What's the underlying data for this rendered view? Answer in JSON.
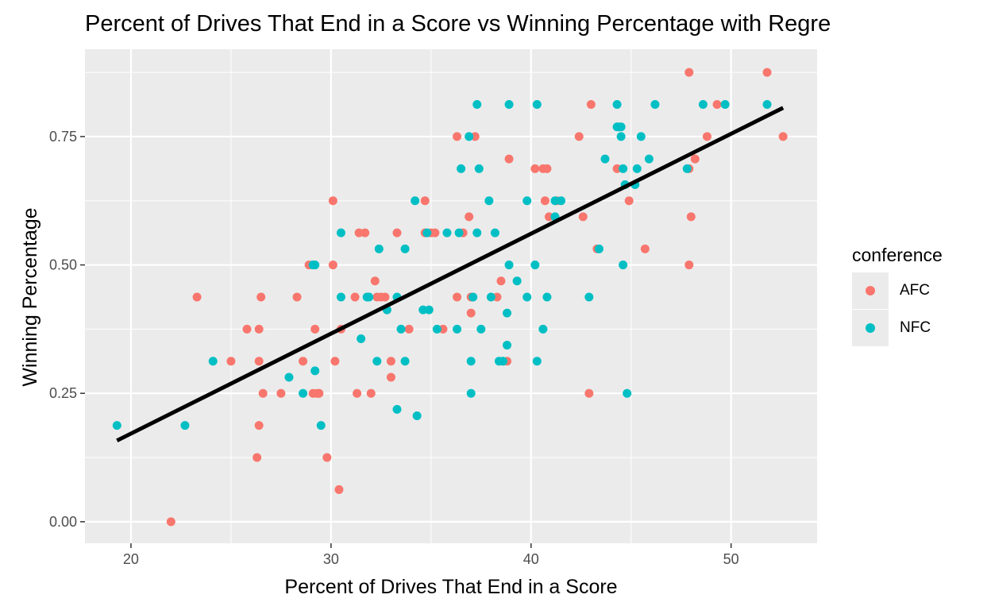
{
  "chart_data": {
    "type": "scatter",
    "title": "Percent of Drives That End in a Score vs Winning Percentage with Regre",
    "xlabel": "Percent of Drives That End in a Score",
    "ylabel": "Winning Percentage",
    "xlim": [
      17.7,
      54.3
    ],
    "ylim": [
      -0.042,
      0.92
    ],
    "x_ticks": [
      20,
      30,
      40,
      50
    ],
    "x_tick_labels": [
      "20",
      "30",
      "40",
      "50"
    ],
    "y_ticks": [
      0,
      0.25,
      0.5,
      0.75
    ],
    "y_tick_labels": [
      "0.00",
      "0.25",
      "0.50",
      "0.75"
    ],
    "grid": true,
    "legend_title": "conference",
    "legend_position": "right",
    "series": [
      {
        "name": "AFC",
        "color": "#F8766D",
        "points": [
          [
            22.0,
            0.0
          ],
          [
            23.3,
            0.4375
          ],
          [
            25.0,
            0.3125
          ],
          [
            25.8,
            0.375
          ],
          [
            26.3,
            0.125
          ],
          [
            26.4,
            0.1875
          ],
          [
            26.4,
            0.3125
          ],
          [
            26.4,
            0.375
          ],
          [
            26.5,
            0.4375
          ],
          [
            26.6,
            0.25
          ],
          [
            27.5,
            0.25
          ],
          [
            28.3,
            0.4375
          ],
          [
            28.6,
            0.3125
          ],
          [
            28.9,
            0.5
          ],
          [
            29.1,
            0.25
          ],
          [
            29.2,
            0.375
          ],
          [
            29.3,
            0.25
          ],
          [
            29.4,
            0.25
          ],
          [
            29.4,
            0.25
          ],
          [
            29.8,
            0.125
          ],
          [
            30.1,
            0.625
          ],
          [
            30.1,
            0.5
          ],
          [
            30.2,
            0.3125
          ],
          [
            30.4,
            0.0625
          ],
          [
            30.5,
            0.375
          ],
          [
            31.2,
            0.4375
          ],
          [
            31.3,
            0.25
          ],
          [
            31.4,
            0.5625
          ],
          [
            31.7,
            0.5625
          ],
          [
            32.0,
            0.25
          ],
          [
            32.3,
            0.4375
          ],
          [
            32.2,
            0.4688
          ],
          [
            32.5,
            0.4375
          ],
          [
            32.7,
            0.4375
          ],
          [
            33.0,
            0.2813
          ],
          [
            33.0,
            0.3125
          ],
          [
            33.3,
            0.5625
          ],
          [
            33.9,
            0.375
          ],
          [
            34.7,
            0.625
          ],
          [
            34.7,
            0.5625
          ],
          [
            35.0,
            0.5625
          ],
          [
            35.2,
            0.5625
          ],
          [
            35.6,
            0.375
          ],
          [
            36.3,
            0.75
          ],
          [
            36.3,
            0.4375
          ],
          [
            36.6,
            0.5625
          ],
          [
            36.9,
            0.5938
          ],
          [
            37.0,
            0.4375
          ],
          [
            37.0,
            0.4063
          ],
          [
            37.2,
            0.75
          ],
          [
            38.3,
            0.4375
          ],
          [
            38.5,
            0.4688
          ],
          [
            38.8,
            0.3125
          ],
          [
            38.9,
            0.7063
          ],
          [
            40.2,
            0.6875
          ],
          [
            40.6,
            0.6875
          ],
          [
            40.8,
            0.6875
          ],
          [
            40.7,
            0.625
          ],
          [
            40.9,
            0.5938
          ],
          [
            41.3,
            0.625
          ],
          [
            42.4,
            0.75
          ],
          [
            42.6,
            0.5938
          ],
          [
            42.9,
            0.25
          ],
          [
            43.0,
            0.8125
          ],
          [
            43.3,
            0.5313
          ],
          [
            44.3,
            0.6875
          ],
          [
            44.9,
            0.625
          ],
          [
            45.7,
            0.5313
          ],
          [
            47.9,
            0.875
          ],
          [
            47.9,
            0.5
          ],
          [
            47.9,
            0.6875
          ],
          [
            48.0,
            0.5938
          ],
          [
            48.2,
            0.7063
          ],
          [
            48.8,
            0.75
          ],
          [
            49.3,
            0.8125
          ],
          [
            51.8,
            0.875
          ],
          [
            52.6,
            0.75
          ]
        ]
      },
      {
        "name": "NFC",
        "color": "#00BFC4",
        "points": [
          [
            19.3,
            0.1875
          ],
          [
            22.7,
            0.1875
          ],
          [
            24.1,
            0.3125
          ],
          [
            27.9,
            0.2813
          ],
          [
            28.6,
            0.25
          ],
          [
            29.2,
            0.5
          ],
          [
            29.1,
            0.5
          ],
          [
            29.2,
            0.2938
          ],
          [
            29.5,
            0.1875
          ],
          [
            30.5,
            0.4375
          ],
          [
            30.5,
            0.5625
          ],
          [
            31.5,
            0.3563
          ],
          [
            31.8,
            0.4375
          ],
          [
            31.9,
            0.4375
          ],
          [
            32.3,
            0.3125
          ],
          [
            32.4,
            0.5313
          ],
          [
            32.8,
            0.4125
          ],
          [
            33.3,
            0.4375
          ],
          [
            33.3,
            0.2188
          ],
          [
            33.5,
            0.375
          ],
          [
            33.7,
            0.5313
          ],
          [
            33.7,
            0.3125
          ],
          [
            34.2,
            0.625
          ],
          [
            34.3,
            0.2063
          ],
          [
            34.6,
            0.4125
          ],
          [
            34.8,
            0.5625
          ],
          [
            34.9,
            0.4125
          ],
          [
            35.3,
            0.375
          ],
          [
            35.8,
            0.5625
          ],
          [
            36.3,
            0.375
          ],
          [
            36.4,
            0.5625
          ],
          [
            36.5,
            0.6875
          ],
          [
            36.9,
            0.75
          ],
          [
            37.0,
            0.25
          ],
          [
            37.0,
            0.3125
          ],
          [
            37.1,
            0.4375
          ],
          [
            37.3,
            0.8125
          ],
          [
            37.3,
            0.5625
          ],
          [
            37.4,
            0.6875
          ],
          [
            37.5,
            0.375
          ],
          [
            37.9,
            0.625
          ],
          [
            38.0,
            0.4375
          ],
          [
            38.2,
            0.5625
          ],
          [
            38.4,
            0.3125
          ],
          [
            38.6,
            0.3125
          ],
          [
            38.8,
            0.3438
          ],
          [
            38.8,
            0.4063
          ],
          [
            38.9,
            0.8125
          ],
          [
            38.9,
            0.5
          ],
          [
            39.3,
            0.4688
          ],
          [
            39.8,
            0.625
          ],
          [
            39.8,
            0.4375
          ],
          [
            40.2,
            0.5
          ],
          [
            40.3,
            0.8125
          ],
          [
            40.3,
            0.3125
          ],
          [
            40.6,
            0.375
          ],
          [
            40.8,
            0.4375
          ],
          [
            41.2,
            0.5938
          ],
          [
            41.2,
            0.625
          ],
          [
            41.5,
            0.625
          ],
          [
            42.9,
            0.4375
          ],
          [
            43.4,
            0.5313
          ],
          [
            43.7,
            0.7063
          ],
          [
            44.3,
            0.8125
          ],
          [
            44.3,
            0.7688
          ],
          [
            44.4,
            0.7688
          ],
          [
            44.5,
            0.75
          ],
          [
            44.5,
            0.7688
          ],
          [
            44.6,
            0.6875
          ],
          [
            44.6,
            0.5
          ],
          [
            44.7,
            0.6563
          ],
          [
            44.8,
            0.25
          ],
          [
            45.2,
            0.6563
          ],
          [
            45.3,
            0.6875
          ],
          [
            45.5,
            0.75
          ],
          [
            45.9,
            0.7063
          ],
          [
            46.2,
            0.8125
          ],
          [
            47.8,
            0.6875
          ],
          [
            48.6,
            0.8125
          ],
          [
            49.7,
            0.8125
          ],
          [
            51.8,
            0.8125
          ]
        ]
      }
    ],
    "regression_line": {
      "x": [
        19.3,
        52.6
      ],
      "y": [
        0.158,
        0.806
      ],
      "color": "#000000"
    }
  }
}
